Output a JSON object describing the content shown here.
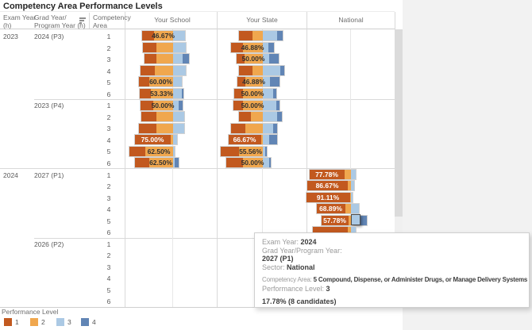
{
  "title_note": "Tableau-style competency dashboard",
  "tooltip": {
    "lines": [
      {
        "label": "Exam Year: ",
        "value": "2024"
      },
      {
        "label": "Grad Year/Program Year:",
        "value": ""
      },
      {
        "label": "",
        "value": " 2027 (P1)"
      },
      {
        "label": "Sector: ",
        "value": "National"
      },
      {
        "spacer": true
      },
      {
        "label": "Competency Area:  ",
        "value": "5 Compound, Dispense, or Administer Drugs, or Manage Delivery Systems",
        "small": true
      },
      {
        "label": "Performance Level: ",
        "value": "3"
      },
      {
        "spacer": true
      },
      {
        "label": "",
        "value": "17.78% (8 candidates)"
      }
    ]
  },
  "chart_data": {
    "type": "bar",
    "variant": "horizontal-diverging-stacked",
    "title": "Competency Area Performance Levels",
    "row_fields": {
      "exam": [
        "Exam Year",
        "(h)"
      ],
      "grad": [
        "Grad Year/",
        "Program Year (h)"
      ],
      "comp": [
        "Competency",
        "Area"
      ]
    },
    "panes": [
      {
        "id": "school",
        "label": "Your School"
      },
      {
        "id": "state",
        "label": "Your State"
      },
      {
        "id": "national",
        "label": "National"
      }
    ],
    "legend_title": "Performance Level",
    "levels": [
      {
        "label": "1",
        "color": "#C2591F"
      },
      {
        "label": "2",
        "color": "#F0A74E"
      },
      {
        "label": "3",
        "color": "#ABC9E4"
      },
      {
        "label": "4",
        "color": "#6185B5"
      }
    ],
    "groups": [
      {
        "exam_year": "2023",
        "grad_year": "2024 (P3)",
        "rows": [
          {
            "area": "1",
            "school": {
              "segs": [
                15,
                24,
                15,
                0
              ],
              "label": "46.67%",
              "label_seg": 2
            },
            "state": {
              "segs": [
                17,
                13,
                18,
                7
              ]
            },
            "national": null
          },
          {
            "area": "2",
            "school": {
              "segs": [
                17,
                21,
                16,
                0
              ]
            },
            "state": {
              "segs": [
                15,
                25,
                7,
                7
              ],
              "label": "46.88%",
              "label_seg": 2
            },
            "national": null
          },
          {
            "area": "3",
            "school": {
              "segs": [
                15,
                21,
                12,
                8
              ]
            },
            "state": {
              "segs": [
                10,
                23,
                8,
                12
              ],
              "label": "50.00%",
              "label_seg": 2
            },
            "national": null
          },
          {
            "area": "4",
            "school": {
              "segs": [
                18,
                23,
                16,
                0
              ]
            },
            "state": {
              "segs": [
                17,
                13,
                22,
                5
              ]
            },
            "national": null
          },
          {
            "area": "5",
            "school": {
              "segs": [
                13,
                30,
                11,
                0
              ],
              "label": "60.00%",
              "label_seg": 2
            },
            "state": {
              "segs": [
                10,
                22,
                9,
                12
              ],
              "label": "46.88%",
              "label_seg": 2
            },
            "national": null
          },
          {
            "area": "6",
            "school": {
              "segs": [
                14,
                28,
                11,
                2
              ],
              "label": "53.33%",
              "label_seg": 2
            },
            "state": {
              "segs": [
                11,
                25,
                13,
                4
              ],
              "label": "50.00%",
              "label_seg": 2
            },
            "national": null
          }
        ]
      },
      {
        "exam_year": "",
        "grad_year": "2023 (P4)",
        "rows": [
          {
            "area": "1",
            "school": {
              "segs": [
                16,
                25,
                7,
                5
              ],
              "label": "50.00%",
              "label_seg": 2
            },
            "state": {
              "segs": [
                12,
                25,
                17,
                4
              ],
              "label": "50.00%",
              "label_seg": 2
            },
            "national": null
          },
          {
            "area": "2",
            "school": {
              "segs": [
                19,
                21,
                14,
                0
              ]
            },
            "state": {
              "segs": [
                15,
                15,
                18,
                6
              ]
            },
            "national": null
          },
          {
            "area": "3",
            "school": {
              "segs": [
                22,
                21,
                14,
                0
              ]
            },
            "state": {
              "segs": [
                18,
                22,
                13,
                5
              ]
            },
            "national": null
          },
          {
            "area": "4",
            "school": {
              "segs": [
                45,
                3,
                5,
                0
              ],
              "label": "75.00%",
              "label_seg": 1
            },
            "state": {
              "segs": [
                41,
                2,
                8,
                10
              ],
              "label": "66.67%",
              "label_seg": 1
            },
            "national": null
          },
          {
            "area": "5",
            "school": {
              "segs": [
                20,
                35,
                2,
                0
              ],
              "label": "62.50%",
              "label_seg": 2
            },
            "state": {
              "segs": [
                23,
                30,
                3,
                2
              ],
              "label": "55.56%",
              "label_seg": 2
            },
            "national": null
          },
          {
            "area": "6",
            "school": {
              "segs": [
                18,
                30,
                2,
                5
              ],
              "label": "62.50%",
              "label_seg": 2
            },
            "state": {
              "segs": [
                21,
                25,
                8,
                2
              ],
              "label": "50.00%",
              "label_seg": 2
            },
            "national": null
          }
        ]
      },
      {
        "exam_year": "2024",
        "grad_year": "2027 (P1)",
        "rows": [
          {
            "area": "1",
            "school": null,
            "state": null,
            "national": {
              "segs": [
                44,
                8,
                6,
                0
              ],
              "label": "77.78%",
              "label_seg": 1
            }
          },
          {
            "area": "2",
            "school": null,
            "state": null,
            "national": {
              "segs": [
                51,
                4,
                4,
                0
              ],
              "label": "86.67%",
              "label_seg": 1
            }
          },
          {
            "area": "3",
            "school": null,
            "state": null,
            "national": {
              "segs": [
                55,
                1,
                2,
                0
              ],
              "label": "91.11%",
              "label_seg": 1
            }
          },
          {
            "area": "4",
            "school": null,
            "state": null,
            "national": {
              "segs": [
                36,
                7,
                10,
                0
              ],
              "label": "68.89%",
              "label_seg": 1
            }
          },
          {
            "area": "5",
            "school": null,
            "state": null,
            "national": {
              "segs": [
                34,
                3,
                12,
                8
              ],
              "label": "57.78%",
              "label_seg": 1,
              "highlight_seg": 3
            }
          },
          {
            "area": "6",
            "school": null,
            "state": null,
            "national": {
              "segs": [
                44,
                4,
                6,
                0
              ]
            }
          }
        ]
      },
      {
        "exam_year": "",
        "grad_year": "2026 (P2)",
        "rows": [
          {
            "area": "1",
            "school": null,
            "state": null,
            "national": null
          },
          {
            "area": "2",
            "school": null,
            "state": null,
            "national": null
          },
          {
            "area": "3",
            "school": null,
            "state": null,
            "national": null
          },
          {
            "area": "4",
            "school": null,
            "state": null,
            "national": null
          },
          {
            "area": "5",
            "school": null,
            "state": null,
            "national": null
          },
          {
            "area": "6",
            "school": null,
            "state": null,
            "national": null
          }
        ]
      }
    ]
  }
}
